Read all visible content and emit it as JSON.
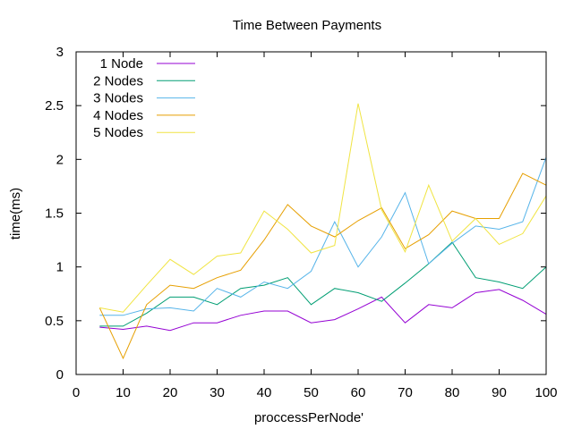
{
  "chart_data": {
    "type": "line",
    "title": "Time Between Payments",
    "xlabel": "proccessPerNode'",
    "ylabel": "time(ms)",
    "xlim": [
      0,
      100
    ],
    "ylim": [
      0,
      3
    ],
    "xticks": [
      0,
      10,
      20,
      30,
      40,
      50,
      60,
      70,
      80,
      90,
      100
    ],
    "yticks": [
      0,
      0.5,
      1,
      1.5,
      2,
      2.5,
      3
    ],
    "xtick_labels": [
      "0",
      "10",
      "20",
      "30",
      "40",
      "50",
      "60",
      "70",
      "80",
      "90",
      "100"
    ],
    "ytick_labels": [
      "0",
      "0.5",
      "1",
      "1.5",
      "2",
      "2.5",
      "3"
    ],
    "grid": false,
    "legend_position": "top-left",
    "x": [
      5,
      10,
      15,
      20,
      25,
      30,
      35,
      40,
      45,
      50,
      55,
      60,
      65,
      70,
      75,
      80,
      85,
      90,
      95,
      100
    ],
    "series": [
      {
        "name": "1 Node",
        "color": "#9400d3",
        "values": [
          0.44,
          0.42,
          0.45,
          0.41,
          0.48,
          0.48,
          0.55,
          0.59,
          0.59,
          0.48,
          0.51,
          0.61,
          0.72,
          0.48,
          0.65,
          0.62,
          0.76,
          0.79,
          0.69,
          0.56
        ]
      },
      {
        "name": "2 Nodes",
        "color": "#009e73",
        "values": [
          0.45,
          0.45,
          0.57,
          0.72,
          0.72,
          0.65,
          0.8,
          0.83,
          0.9,
          0.65,
          0.8,
          0.76,
          0.68,
          0.85,
          1.03,
          1.23,
          0.9,
          0.86,
          0.8,
          1.0
        ]
      },
      {
        "name": "3 Nodes",
        "color": "#56b4e9",
        "values": [
          0.55,
          0.55,
          0.61,
          0.62,
          0.59,
          0.8,
          0.72,
          0.86,
          0.8,
          0.96,
          1.42,
          1.0,
          1.28,
          1.69,
          1.03,
          1.22,
          1.38,
          1.35,
          1.42,
          2.02
        ]
      },
      {
        "name": "4 Nodes",
        "color": "#e69f00",
        "values": [
          0.62,
          0.15,
          0.65,
          0.83,
          0.8,
          0.9,
          0.97,
          1.25,
          1.58,
          1.38,
          1.28,
          1.43,
          1.55,
          1.17,
          1.3,
          1.52,
          1.45,
          1.45,
          1.87,
          1.76
        ]
      },
      {
        "name": "5 Nodes",
        "color": "#f0e442",
        "values": [
          0.62,
          0.58,
          0.83,
          1.07,
          0.93,
          1.1,
          1.13,
          1.52,
          1.35,
          1.13,
          1.2,
          2.52,
          1.53,
          1.14,
          1.76,
          1.24,
          1.45,
          1.21,
          1.31,
          1.66
        ]
      }
    ]
  }
}
